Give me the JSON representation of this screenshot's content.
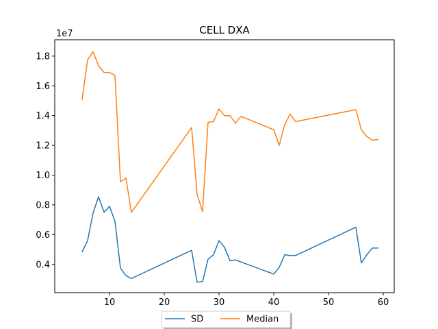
{
  "chart_data": {
    "type": "line",
    "title": "CELL DXA",
    "xlabel": "",
    "ylabel": "",
    "y_offset_label": "1e7",
    "xlim": [
      0,
      62
    ],
    "ylim": [
      2.1,
      19.1
    ],
    "x_ticks": [
      10,
      20,
      30,
      40,
      50,
      60
    ],
    "y_ticks": [
      4,
      6,
      8,
      10,
      12,
      14,
      16,
      18
    ],
    "y_tick_labels": [
      "0.4",
      "0.6",
      "0.8",
      "1.0",
      "1.2",
      "1.4",
      "1.6",
      "1.8"
    ],
    "grid": false,
    "legend_position": "lower-center",
    "series": [
      {
        "name": "SD",
        "color": "#1f77b4",
        "x": [
          5,
          6,
          7,
          8,
          9,
          10,
          11,
          12,
          13,
          14,
          25,
          26,
          27,
          28,
          29,
          30,
          31,
          32,
          33,
          40,
          41,
          42,
          43,
          44,
          55,
          56,
          57,
          58,
          59
        ],
        "y": [
          4.85,
          5.6,
          7.45,
          8.55,
          7.5,
          7.9,
          6.9,
          3.75,
          3.25,
          3.05,
          4.95,
          2.8,
          2.85,
          4.35,
          4.65,
          5.6,
          5.15,
          4.25,
          4.3,
          3.35,
          3.8,
          4.65,
          4.6,
          4.6,
          6.5,
          4.1,
          4.65,
          5.1,
          5.1
        ]
      },
      {
        "name": "Median",
        "color": "#ff7f0e",
        "x": [
          5,
          6,
          7,
          8,
          9,
          10,
          11,
          12,
          13,
          14,
          25,
          26,
          27,
          28,
          29,
          30,
          31,
          32,
          33,
          34,
          40,
          41,
          42,
          43,
          44,
          55,
          56,
          57,
          58,
          59
        ],
        "y": [
          15.1,
          17.75,
          18.3,
          17.35,
          16.9,
          16.9,
          16.7,
          9.55,
          9.8,
          7.5,
          13.2,
          8.7,
          7.55,
          13.55,
          13.6,
          14.45,
          14.0,
          14.0,
          13.5,
          13.95,
          13.05,
          12.0,
          13.4,
          14.1,
          13.6,
          14.4,
          13.05,
          12.6,
          12.35,
          12.4
        ]
      }
    ]
  }
}
